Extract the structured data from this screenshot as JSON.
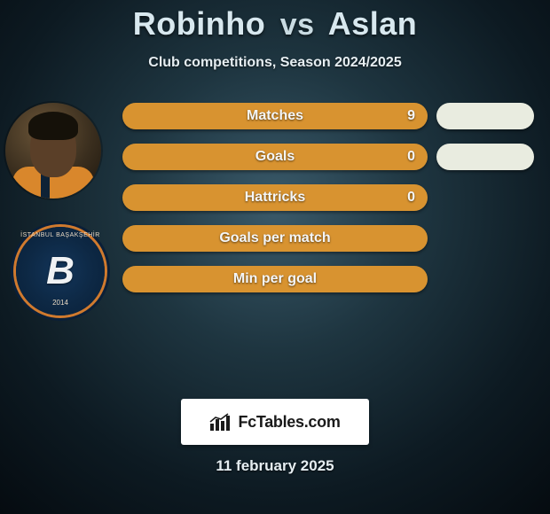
{
  "title": {
    "player1": "Robinho",
    "vs": "vs",
    "player2": "Aslan"
  },
  "subtitle": "Club competitions, Season 2024/2025",
  "club_badge": {
    "letter": "B",
    "top_text": "İSTANBUL BAŞAKŞEHİR",
    "year": "2014"
  },
  "stats": {
    "bar_colors": {
      "filled": "#d89330",
      "base": "#a3691e"
    },
    "right_pill_color": "#e9ece0",
    "rows": [
      {
        "label": "Matches",
        "value": "9",
        "show_value": true,
        "right_pill": true,
        "fill_ratio": 1.0
      },
      {
        "label": "Goals",
        "value": "0",
        "show_value": true,
        "right_pill": true,
        "fill_ratio": 1.0
      },
      {
        "label": "Hattricks",
        "value": "0",
        "show_value": true,
        "right_pill": false,
        "fill_ratio": 1.0
      },
      {
        "label": "Goals per match",
        "value": "",
        "show_value": false,
        "right_pill": false,
        "fill_ratio": 1.0
      },
      {
        "label": "Min per goal",
        "value": "",
        "show_value": false,
        "right_pill": false,
        "fill_ratio": 1.0
      }
    ]
  },
  "footer_brand": "FcTables.com",
  "date": "11 february 2025",
  "colors": {
    "title_text": "#d8e8ef",
    "body_text": "#e6eef2"
  }
}
